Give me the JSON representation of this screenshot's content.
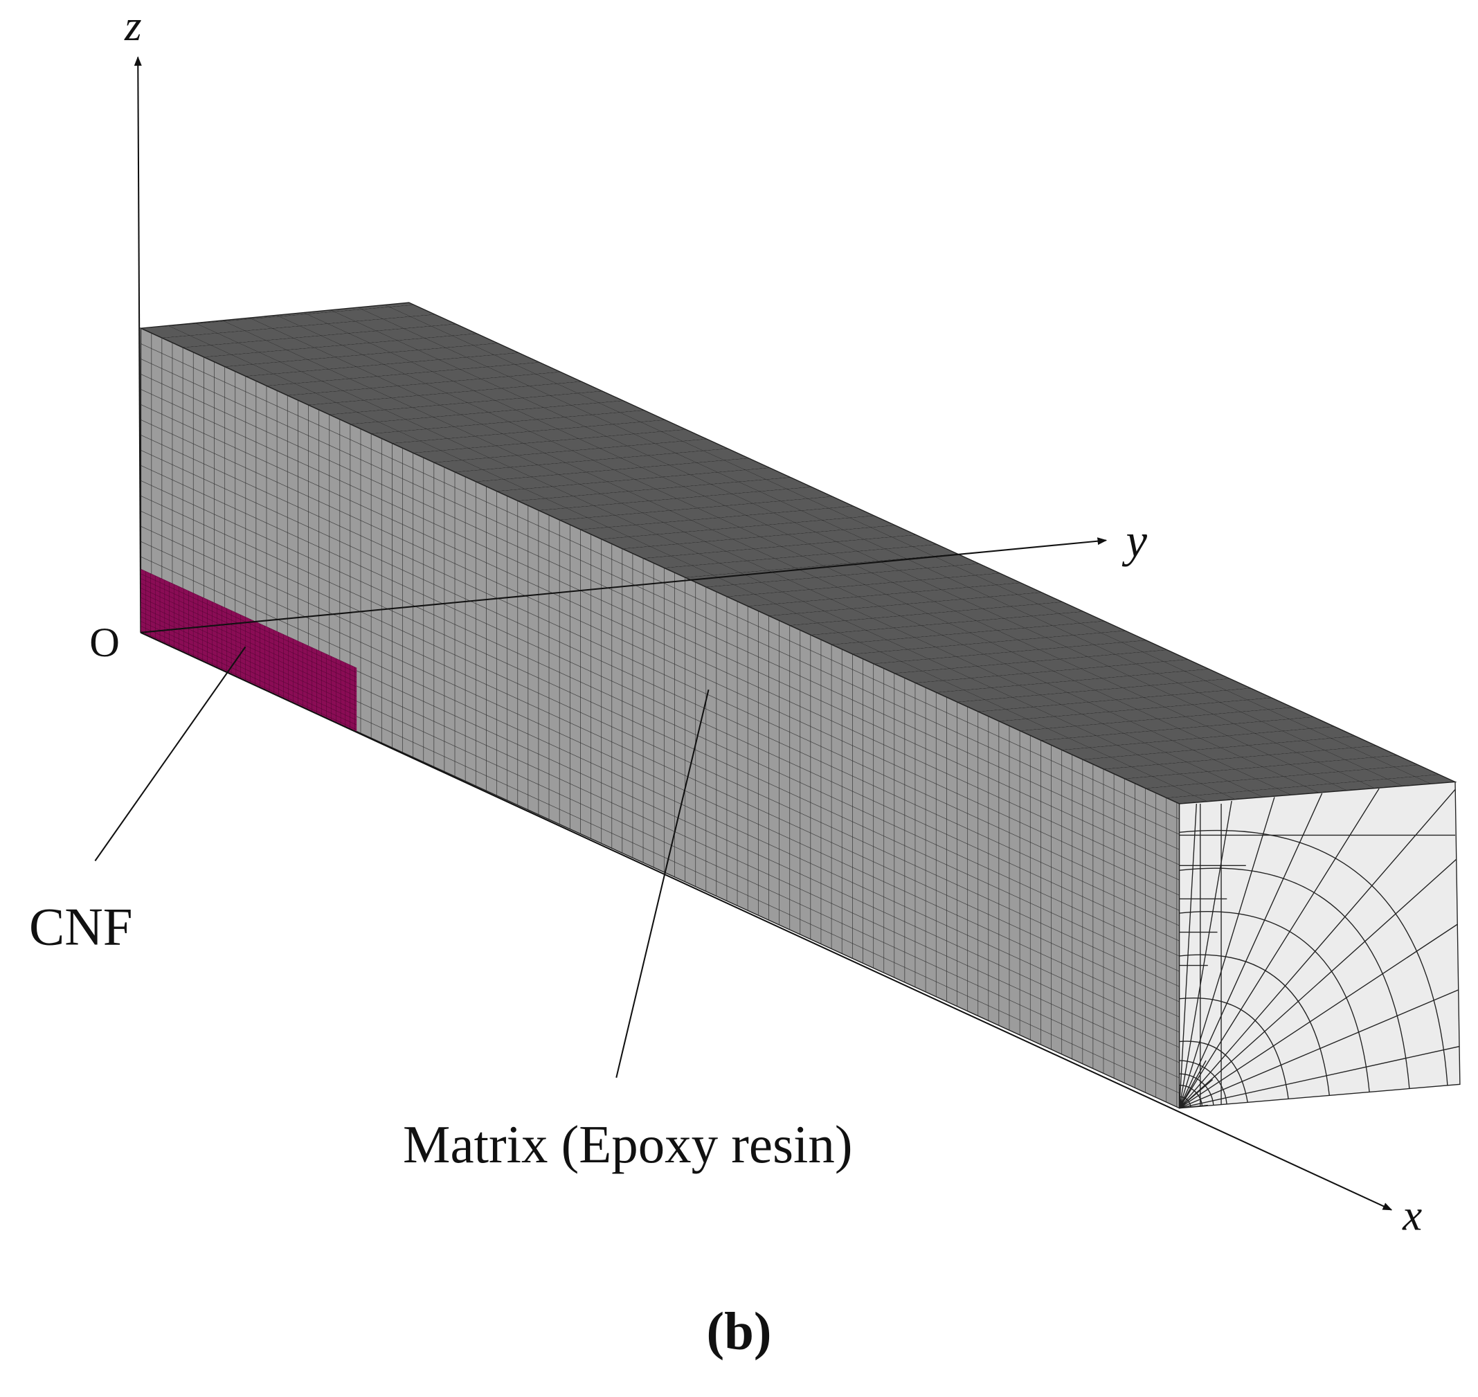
{
  "axes": {
    "z": "z",
    "y": "y",
    "x": "x",
    "origin": "O"
  },
  "labels": {
    "cnf": "CNF",
    "matrix": "Matrix (Epoxy resin)"
  },
  "caption": "(b)"
}
